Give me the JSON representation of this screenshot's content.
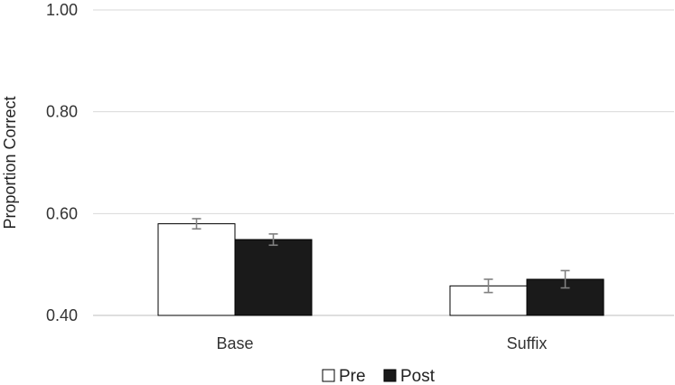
{
  "chart_data": {
    "type": "bar",
    "title": "",
    "xlabel": "",
    "ylabel": "Proportion Correct",
    "categories": [
      "Base",
      "Suffix"
    ],
    "ylim": [
      0.4,
      1.0
    ],
    "yticks": [
      "0.40",
      "0.60",
      "0.80",
      "1.00"
    ],
    "grid": true,
    "legend_position": "bottom-center",
    "series": [
      {
        "name": "Pre",
        "values": [
          0.58,
          0.458
        ],
        "errors": [
          0.01,
          0.013
        ],
        "color": "#ffffff",
        "edge": "#000000"
      },
      {
        "name": "Post",
        "values": [
          0.549,
          0.471
        ],
        "errors": [
          0.011,
          0.017
        ],
        "color": "#1a1a1a",
        "edge": "#000000"
      }
    ]
  }
}
